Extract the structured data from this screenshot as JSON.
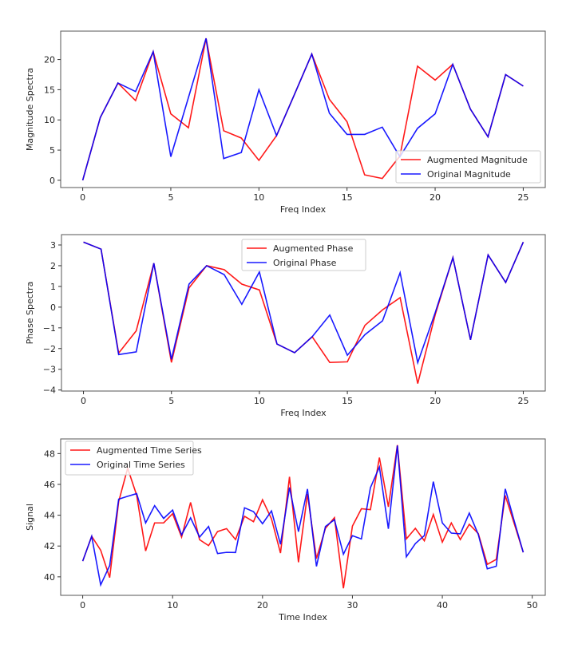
{
  "colors": {
    "augmented": "#ff0000",
    "original": "#0000ff"
  },
  "chart_data": [
    {
      "id": "magnitude",
      "type": "line",
      "title": "",
      "xlabel": "Freq Index",
      "ylabel": "Magnitude Spectra",
      "xlim": [
        -1.25,
        26.25
      ],
      "ylim": [
        -1.2,
        24.7
      ],
      "xticks": [
        0,
        5,
        10,
        15,
        20,
        25
      ],
      "yticks": [
        0,
        5,
        10,
        15,
        20
      ],
      "legend_position": "lower-right",
      "x": [
        0,
        1,
        2,
        3,
        4,
        5,
        6,
        7,
        8,
        9,
        10,
        11,
        12,
        13,
        14,
        15,
        16,
        17,
        18,
        19,
        20,
        21,
        22,
        23,
        24,
        25
      ],
      "series": [
        {
          "name": "Augmented Magnitude",
          "color": "#ff0000",
          "values": [
            0.0,
            10.4,
            16.1,
            13.2,
            21.3,
            11.0,
            8.7,
            23.5,
            8.2,
            7.0,
            3.3,
            7.4,
            14.1,
            20.9,
            13.4,
            9.7,
            0.9,
            0.3,
            4.0,
            18.9,
            16.6,
            19.2,
            11.8,
            7.2,
            17.5,
            15.6
          ]
        },
        {
          "name": "Original Magnitude",
          "color": "#0000ff",
          "values": [
            0.0,
            10.4,
            16.1,
            14.7,
            21.3,
            3.9,
            13.7,
            23.5,
            3.6,
            4.6,
            15.0,
            7.4,
            14.1,
            20.9,
            11.1,
            7.6,
            7.6,
            8.8,
            3.9,
            8.6,
            11.0,
            19.2,
            11.8,
            7.2,
            17.5,
            15.6
          ]
        }
      ]
    },
    {
      "id": "phase",
      "type": "line",
      "title": "",
      "xlabel": "Freq Index",
      "ylabel": "Phase Spectra",
      "xlim": [
        -1.25,
        26.25
      ],
      "ylim": [
        -4.05,
        3.5
      ],
      "xticks": [
        0,
        5,
        10,
        15,
        20,
        25
      ],
      "yticks": [
        -4,
        -3,
        -2,
        -1,
        0,
        1,
        2,
        3
      ],
      "legend_position": "upper-center",
      "x": [
        0,
        1,
        2,
        3,
        4,
        5,
        6,
        7,
        8,
        9,
        10,
        11,
        12,
        13,
        14,
        15,
        16,
        17,
        18,
        19,
        20,
        21,
        22,
        23,
        24,
        25
      ],
      "series": [
        {
          "name": "Augmented Phase",
          "color": "#ff0000",
          "values": [
            3.14,
            2.8,
            -2.22,
            -1.14,
            2.12,
            -2.67,
            0.93,
            2.0,
            1.81,
            1.11,
            0.83,
            -1.78,
            -2.2,
            -1.43,
            -2.67,
            -2.64,
            -0.88,
            -0.13,
            0.46,
            -3.69,
            -0.35,
            2.39,
            -1.58,
            2.52,
            1.19,
            3.14
          ]
        },
        {
          "name": "Original Phase",
          "color": "#0000ff",
          "values": [
            3.14,
            2.8,
            -2.29,
            -2.16,
            2.12,
            -2.52,
            1.11,
            2.0,
            1.57,
            0.14,
            1.7,
            -1.78,
            -2.2,
            -1.43,
            -0.38,
            -2.32,
            -1.33,
            -0.66,
            1.66,
            -2.68,
            -0.25,
            2.39,
            -1.58,
            2.52,
            1.19,
            3.14
          ]
        }
      ]
    },
    {
      "id": "timeseries",
      "type": "line",
      "title": "",
      "xlabel": "Time Index",
      "ylabel": "Signal",
      "xlim": [
        -2.45,
        51.45
      ],
      "ylim": [
        38.8,
        48.95
      ],
      "xticks": [
        0,
        10,
        20,
        30,
        40,
        50
      ],
      "yticks": [
        40,
        42,
        44,
        46,
        48
      ],
      "legend_position": "upper-left",
      "x": [
        0,
        1,
        2,
        3,
        4,
        5,
        6,
        7,
        8,
        9,
        10,
        11,
        12,
        13,
        14,
        15,
        16,
        17,
        18,
        19,
        20,
        21,
        22,
        23,
        24,
        25,
        26,
        27,
        28,
        29,
        30,
        31,
        32,
        33,
        34,
        35,
        36,
        37,
        38,
        39,
        40,
        41,
        42,
        43,
        44,
        45,
        46,
        47,
        48,
        49
      ],
      "series": [
        {
          "name": "Augmented Time Series",
          "color": "#ff0000",
          "values": [
            41.02,
            42.63,
            41.73,
            39.95,
            44.88,
            47.05,
            45.3,
            41.68,
            43.5,
            43.5,
            44.1,
            42.58,
            44.83,
            42.41,
            42.03,
            42.94,
            43.13,
            42.42,
            43.93,
            43.58,
            45.0,
            43.76,
            41.54,
            46.49,
            40.95,
            45.37,
            41.19,
            43.15,
            43.84,
            39.26,
            43.29,
            44.42,
            44.36,
            47.74,
            44.54,
            48.55,
            42.46,
            43.15,
            42.34,
            44.05,
            42.25,
            43.5,
            42.42,
            43.41,
            42.81,
            40.81,
            41.13,
            45.28,
            43.45,
            41.59
          ]
        },
        {
          "name": "Original Time Series",
          "color": "#0000ff",
          "values": [
            41.02,
            42.63,
            39.48,
            40.73,
            45.04,
            45.23,
            45.4,
            43.5,
            44.62,
            43.79,
            44.33,
            42.72,
            43.83,
            42.58,
            43.27,
            41.51,
            41.59,
            41.58,
            44.48,
            44.23,
            43.45,
            44.28,
            42.11,
            45.8,
            42.93,
            45.7,
            40.68,
            43.27,
            43.71,
            41.47,
            42.67,
            42.46,
            45.78,
            47.13,
            43.12,
            48.52,
            41.3,
            42.16,
            42.68,
            46.18,
            43.5,
            42.84,
            42.79,
            44.14,
            42.75,
            40.52,
            40.69,
            45.71,
            43.62,
            41.59
          ]
        }
      ]
    }
  ]
}
